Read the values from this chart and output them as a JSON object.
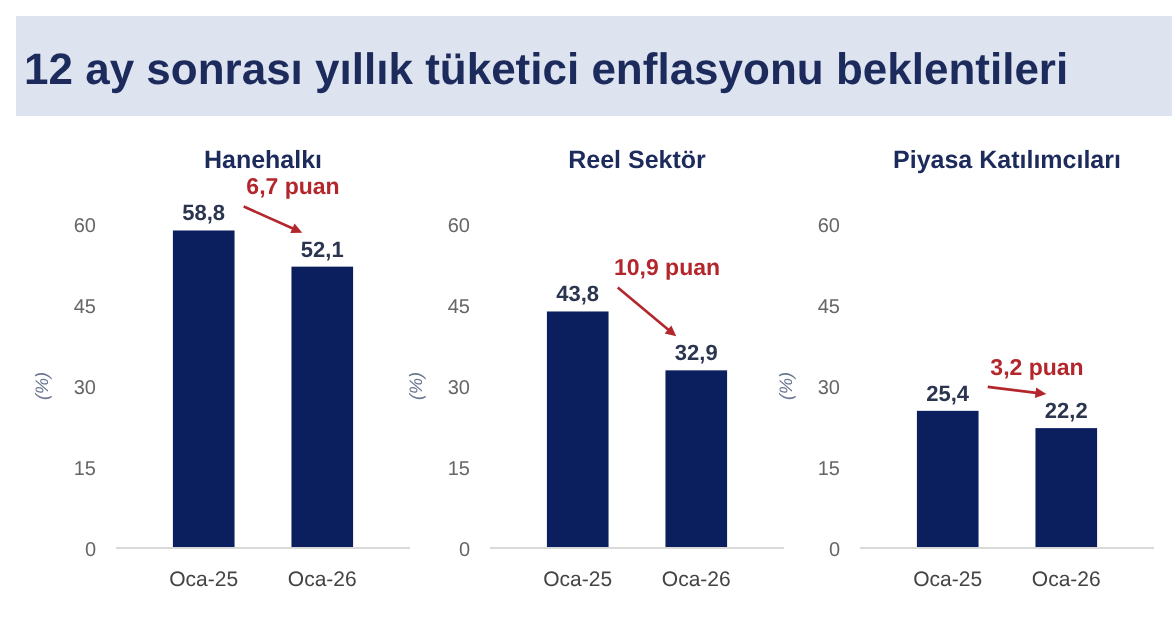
{
  "chart_data": [
    {
      "type": "other",
      "title": "12 ay sonrası yıllık tüketici enflasyonu beklentileri"
    },
    {
      "type": "bar",
      "title": "Hanehalkı",
      "ylabel": "(%)",
      "categories": [
        "Oca-25",
        "Oca-26"
      ],
      "values": [
        58.8,
        52.1
      ],
      "value_labels": [
        "58,8",
        "52,1"
      ],
      "color": "#0b1f5e",
      "ylim": [
        0,
        60
      ],
      "yticks": [
        0,
        15,
        30,
        45,
        60
      ],
      "grid": false,
      "annotations": [
        "6,7 puan"
      ]
    },
    {
      "type": "bar",
      "title": "Reel Sektör",
      "ylabel": "(%)",
      "categories": [
        "Oca-25",
        "Oca-26"
      ],
      "values": [
        43.8,
        32.9
      ],
      "value_labels": [
        "43,8",
        "32,9"
      ],
      "color": "#0b1f5e",
      "ylim": [
        0,
        60
      ],
      "yticks": [
        0,
        15,
        30,
        45,
        60
      ],
      "grid": false,
      "annotations": [
        "10,9 puan"
      ]
    },
    {
      "type": "bar",
      "title": "Piyasa Katılımcıları",
      "ylabel": "(%)",
      "categories": [
        "Oca-25",
        "Oca-26"
      ],
      "values": [
        25.4,
        22.2
      ],
      "value_labels": [
        "25,4",
        "22,2"
      ],
      "color": "#0b1f5e",
      "ylim": [
        0,
        60
      ],
      "yticks": [
        0,
        15,
        30,
        45,
        60
      ],
      "grid": false,
      "annotations": [
        "3,2 puan"
      ]
    }
  ]
}
